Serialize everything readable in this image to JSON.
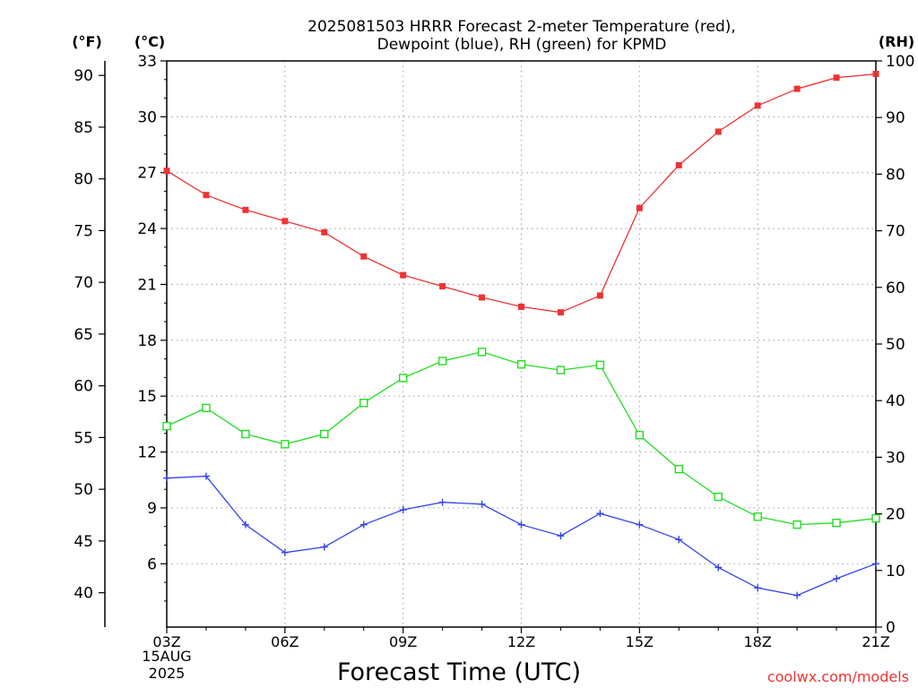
{
  "chart_data": {
    "type": "line",
    "title_line1": "2025081503 HRRR Forecast 2-meter Temperature (red),",
    "title_line2": "Dewpoint (blue), RH (green) for KPMD",
    "xlabel": "Forecast Time (UTC)",
    "unit_f": "(°F)",
    "unit_c": "(°C)",
    "unit_rh": "(RH)",
    "x_hours": [
      3,
      4,
      5,
      6,
      7,
      8,
      9,
      10,
      11,
      12,
      13,
      14,
      15,
      16,
      17,
      18,
      19,
      20,
      21
    ],
    "xlim": [
      3,
      21
    ],
    "x_ticks": [
      {
        "hour": 3,
        "label": "03Z"
      },
      {
        "hour": 6,
        "label": "06Z"
      },
      {
        "hour": 9,
        "label": "09Z"
      },
      {
        "hour": 12,
        "label": "12Z"
      },
      {
        "hour": 15,
        "label": "15Z"
      },
      {
        "hour": 18,
        "label": "18Z"
      },
      {
        "hour": 21,
        "label": "21Z"
      }
    ],
    "date_line1": "15AUG",
    "date_line2": "2025",
    "ylim_c": [
      2.6,
      33.0
    ],
    "c_ticks": [
      "6",
      "9",
      "12",
      "15",
      "18",
      "21",
      "24",
      "27",
      "30",
      "33"
    ],
    "f_ticks": [
      "40",
      "45",
      "50",
      "55",
      "60",
      "65",
      "70",
      "75",
      "80",
      "85",
      "90"
    ],
    "ylim_rh": [
      0,
      100
    ],
    "rh_ticks": [
      "0",
      "10",
      "20",
      "30",
      "40",
      "50",
      "60",
      "70",
      "80",
      "90",
      "100"
    ],
    "grid": true,
    "series": [
      {
        "name": "Temperature",
        "axis": "celsius",
        "color": "#ee3333",
        "marker": "filled-square",
        "values": [
          27.1,
          25.8,
          25.0,
          24.4,
          23.8,
          22.5,
          21.5,
          20.9,
          20.3,
          19.8,
          19.5,
          20.4,
          25.1,
          27.4,
          29.2,
          30.6,
          31.5,
          32.1,
          32.3
        ]
      },
      {
        "name": "Dewpoint",
        "axis": "celsius",
        "color": "#3344ee",
        "marker": "plus",
        "values": [
          10.6,
          10.7,
          8.1,
          6.6,
          6.9,
          8.1,
          8.9,
          9.3,
          9.2,
          8.1,
          7.5,
          8.7,
          8.1,
          7.3,
          5.8,
          4.7,
          4.3,
          5.2,
          6.0
        ]
      },
      {
        "name": "RH",
        "axis": "rh",
        "color": "#22dd22",
        "marker": "open-square",
        "values": [
          35.5,
          38.7,
          34.1,
          32.3,
          34.1,
          39.6,
          44.0,
          47.0,
          48.6,
          46.4,
          45.4,
          46.3,
          33.9,
          27.9,
          23.0,
          19.5,
          18.1,
          18.4,
          19.2
        ]
      }
    ]
  },
  "footer": {
    "credit": "coolwx.com/models"
  }
}
